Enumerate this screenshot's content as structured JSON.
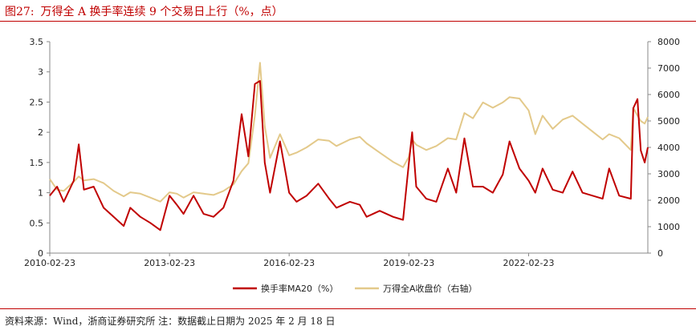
{
  "header": {
    "figure_number": "图27:",
    "title": "万得全 A 换手率连续 9 个交易日上行（%，点）"
  },
  "footer": {
    "source": "资料来源：Wind，浙商证券研究所 注：数据截止日期为 2025 年 2 月 18 日"
  },
  "colors": {
    "accent": "#c00000",
    "turnover": "#c00000",
    "index": "#e3c98a",
    "axis": "#888888"
  },
  "chart_data": {
    "type": "line",
    "title": "",
    "xlabel": "",
    "ylabel": "",
    "x_tick_labels": [
      "2010-02-23",
      "2013-02-23",
      "2016-02-23",
      "2019-02-23",
      "2022-02-23"
    ],
    "x_range": [
      "2010-02-23",
      "2025-02-18"
    ],
    "ylim_left": [
      0,
      3.5
    ],
    "yticks_left": [
      "0",
      "0.5",
      "1",
      "1.5",
      "2",
      "2.5",
      "3",
      "3.5"
    ],
    "ylim_right": [
      0,
      8000
    ],
    "yticks_right": [
      "0",
      "1000",
      "2000",
      "3000",
      "4000",
      "5000",
      "6000",
      "7000",
      "8000"
    ],
    "grid": false,
    "legend_position": "bottom",
    "series": [
      {
        "name": "换手率MA20（%）",
        "axis": "left",
        "points": [
          [
            "2010-02-23",
            0.95
          ],
          [
            "2010-05-01",
            1.1
          ],
          [
            "2010-07-01",
            0.85
          ],
          [
            "2010-10-01",
            1.2
          ],
          [
            "2010-11-15",
            1.8
          ],
          [
            "2011-01-01",
            1.05
          ],
          [
            "2011-04-01",
            1.1
          ],
          [
            "2011-07-01",
            0.75
          ],
          [
            "2011-10-01",
            0.6
          ],
          [
            "2012-01-01",
            0.45
          ],
          [
            "2012-03-01",
            0.75
          ],
          [
            "2012-06-01",
            0.6
          ],
          [
            "2012-09-01",
            0.5
          ],
          [
            "2012-12-01",
            0.38
          ],
          [
            "2013-02-23",
            0.95
          ],
          [
            "2013-05-01",
            0.8
          ],
          [
            "2013-07-01",
            0.65
          ],
          [
            "2013-10-01",
            0.95
          ],
          [
            "2014-01-01",
            0.65
          ],
          [
            "2014-04-01",
            0.6
          ],
          [
            "2014-07-01",
            0.75
          ],
          [
            "2014-10-01",
            1.2
          ],
          [
            "2014-12-15",
            2.3
          ],
          [
            "2015-02-15",
            1.6
          ],
          [
            "2015-04-15",
            2.8
          ],
          [
            "2015-06-01",
            2.85
          ],
          [
            "2015-07-15",
            1.5
          ],
          [
            "2015-09-01",
            1.0
          ],
          [
            "2015-12-01",
            1.85
          ],
          [
            "2016-02-23",
            1.0
          ],
          [
            "2016-05-01",
            0.85
          ],
          [
            "2016-08-01",
            0.95
          ],
          [
            "2016-11-15",
            1.15
          ],
          [
            "2017-02-23",
            0.9
          ],
          [
            "2017-05-01",
            0.75
          ],
          [
            "2017-09-01",
            0.85
          ],
          [
            "2017-12-01",
            0.8
          ],
          [
            "2018-02-01",
            0.6
          ],
          [
            "2018-06-01",
            0.7
          ],
          [
            "2018-10-01",
            0.6
          ],
          [
            "2019-01-01",
            0.55
          ],
          [
            "2019-02-23",
            1.5
          ],
          [
            "2019-03-25",
            2.0
          ],
          [
            "2019-05-01",
            1.1
          ],
          [
            "2019-08-01",
            0.9
          ],
          [
            "2019-11-01",
            0.85
          ],
          [
            "2020-02-15",
            1.4
          ],
          [
            "2020-05-01",
            1.0
          ],
          [
            "2020-07-15",
            1.9
          ],
          [
            "2020-10-01",
            1.1
          ],
          [
            "2021-01-01",
            1.1
          ],
          [
            "2021-04-01",
            1.0
          ],
          [
            "2021-07-01",
            1.3
          ],
          [
            "2021-09-01",
            1.85
          ],
          [
            "2021-12-01",
            1.4
          ],
          [
            "2022-02-23",
            1.2
          ],
          [
            "2022-04-25",
            1.0
          ],
          [
            "2022-07-01",
            1.4
          ],
          [
            "2022-10-01",
            1.05
          ],
          [
            "2023-01-01",
            1.0
          ],
          [
            "2023-04-01",
            1.35
          ],
          [
            "2023-07-01",
            1.0
          ],
          [
            "2023-10-01",
            0.95
          ],
          [
            "2024-01-01",
            0.9
          ],
          [
            "2024-03-01",
            1.4
          ],
          [
            "2024-06-01",
            0.95
          ],
          [
            "2024-09-15",
            0.9
          ],
          [
            "2024-10-08",
            2.4
          ],
          [
            "2024-11-15",
            2.55
          ],
          [
            "2024-12-15",
            1.7
          ],
          [
            "2025-01-20",
            1.5
          ],
          [
            "2025-02-18",
            1.75
          ]
        ]
      },
      {
        "name": "万得全A收盘价（右轴）",
        "axis": "right",
        "points": [
          [
            "2010-02-23",
            2800
          ],
          [
            "2010-05-01",
            2400
          ],
          [
            "2010-07-01",
            2350
          ],
          [
            "2010-10-01",
            2700
          ],
          [
            "2010-11-15",
            2900
          ],
          [
            "2011-01-01",
            2750
          ],
          [
            "2011-04-01",
            2800
          ],
          [
            "2011-07-01",
            2650
          ],
          [
            "2011-10-01",
            2350
          ],
          [
            "2012-01-01",
            2150
          ],
          [
            "2012-03-01",
            2300
          ],
          [
            "2012-06-01",
            2250
          ],
          [
            "2012-09-01",
            2100
          ],
          [
            "2012-12-01",
            1950
          ],
          [
            "2013-02-23",
            2300
          ],
          [
            "2013-05-01",
            2250
          ],
          [
            "2013-07-01",
            2100
          ],
          [
            "2013-10-01",
            2300
          ],
          [
            "2014-01-01",
            2250
          ],
          [
            "2014-04-01",
            2200
          ],
          [
            "2014-07-01",
            2350
          ],
          [
            "2014-10-01",
            2600
          ],
          [
            "2014-12-15",
            3100
          ],
          [
            "2015-02-15",
            3400
          ],
          [
            "2015-04-15",
            5200
          ],
          [
            "2015-06-01",
            7200
          ],
          [
            "2015-07-15",
            4800
          ],
          [
            "2015-09-01",
            3600
          ],
          [
            "2015-12-01",
            4500
          ],
          [
            "2016-02-23",
            3700
          ],
          [
            "2016-05-01",
            3800
          ],
          [
            "2016-08-01",
            4000
          ],
          [
            "2016-11-15",
            4300
          ],
          [
            "2017-02-23",
            4250
          ],
          [
            "2017-05-01",
            4050
          ],
          [
            "2017-09-01",
            4300
          ],
          [
            "2017-12-01",
            4400
          ],
          [
            "2018-02-01",
            4150
          ],
          [
            "2018-06-01",
            3800
          ],
          [
            "2018-10-01",
            3450
          ],
          [
            "2019-01-01",
            3250
          ],
          [
            "2019-02-23",
            3650
          ],
          [
            "2019-03-25",
            4300
          ],
          [
            "2019-05-01",
            4100
          ],
          [
            "2019-08-01",
            3900
          ],
          [
            "2019-11-01",
            4050
          ],
          [
            "2020-02-15",
            4350
          ],
          [
            "2020-05-01",
            4300
          ],
          [
            "2020-07-15",
            5300
          ],
          [
            "2020-10-01",
            5100
          ],
          [
            "2021-01-01",
            5700
          ],
          [
            "2021-04-01",
            5500
          ],
          [
            "2021-07-01",
            5700
          ],
          [
            "2021-09-01",
            5900
          ],
          [
            "2021-12-01",
            5850
          ],
          [
            "2022-02-23",
            5400
          ],
          [
            "2022-04-25",
            4500
          ],
          [
            "2022-07-01",
            5200
          ],
          [
            "2022-10-01",
            4700
          ],
          [
            "2023-01-01",
            5050
          ],
          [
            "2023-04-01",
            5200
          ],
          [
            "2023-07-01",
            4900
          ],
          [
            "2023-10-01",
            4600
          ],
          [
            "2024-01-01",
            4300
          ],
          [
            "2024-03-01",
            4500
          ],
          [
            "2024-06-01",
            4350
          ],
          [
            "2024-09-15",
            3900
          ],
          [
            "2024-10-08",
            5500
          ],
          [
            "2024-11-15",
            5200
          ],
          [
            "2024-12-15",
            5000
          ],
          [
            "2025-01-20",
            4900
          ],
          [
            "2025-02-18",
            5150
          ]
        ]
      }
    ]
  }
}
